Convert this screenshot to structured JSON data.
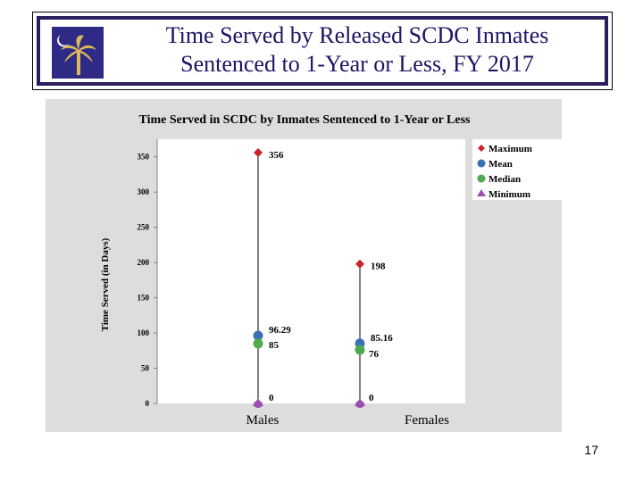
{
  "slide": {
    "title_line1": "Time Served by Released SCDC Inmates",
    "title_line2": "Sentenced to 1-Year or Less, FY 2017",
    "page_number": "17"
  },
  "colors": {
    "title": "#1b1565",
    "flag_blue": "#2e2a86",
    "palmetto": "#d9b95b",
    "maximum": "#cc2229",
    "mean": "#3d6fb6",
    "median": "#4fa94d",
    "minimum": "#9c4fb1"
  },
  "chart_data": {
    "type": "scatter",
    "title": "Time Served in SCDC by Inmates Sentenced to 1-Year or Less",
    "xlabel": "",
    "ylabel": "Time Served (in Days)",
    "ylim": [
      0,
      375
    ],
    "yticks": [
      0,
      50,
      100,
      150,
      200,
      250,
      300,
      350
    ],
    "categories": [
      "Males",
      "Females"
    ],
    "grid": false,
    "legend_position": "top-right",
    "series": [
      {
        "name": "Maximum",
        "marker": "diamond",
        "values": [
          356,
          198
        ],
        "labels": [
          "356",
          "198"
        ]
      },
      {
        "name": "Mean",
        "marker": "circle",
        "values": [
          96.29,
          85.16
        ],
        "labels": [
          "96.29",
          "85.16"
        ]
      },
      {
        "name": "Median",
        "marker": "circle",
        "values": [
          85,
          76
        ],
        "labels": [
          "85",
          "76"
        ]
      },
      {
        "name": "Minimum",
        "marker": "triangle",
        "values": [
          0,
          0
        ],
        "labels": [
          "0",
          "0"
        ]
      }
    ]
  }
}
